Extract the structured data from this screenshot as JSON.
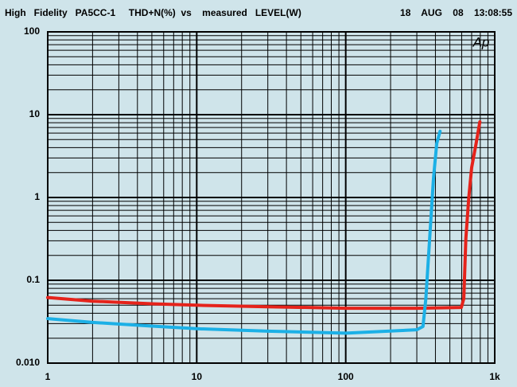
{
  "chart_data": {
    "type": "line",
    "title": "High   Fidelity   PA5CC-1     THD+N(%)  vs    measured   LEVEL(W)",
    "timestamp": "18    AUG    08    13:08:55",
    "logo": "Ap",
    "xlog": true,
    "ylog": true,
    "grid": true,
    "minor_grid": true,
    "xlim": [
      1,
      1000
    ],
    "ylim": [
      0.01,
      100
    ],
    "xticks": [
      1,
      10,
      100,
      {
        "value": 1000,
        "label": "1k"
      }
    ],
    "yticks": [
      {
        "value": 0.01,
        "label": "0.010"
      },
      0.1,
      1,
      10,
      100
    ],
    "series": [
      {
        "color": "#e5231b",
        "x": [
          1,
          2,
          5,
          10,
          30,
          100,
          300,
          597,
          620,
          640,
          670,
          700,
          750,
          795
        ],
        "values": [
          0.062,
          0.056,
          0.052,
          0.05,
          0.048,
          0.046,
          0.046,
          0.047,
          0.06,
          0.32,
          1.0,
          2.3,
          4.5,
          8.2
        ]
      },
      {
        "color": "#1cb0e6",
        "x": [
          1,
          2,
          5,
          10,
          30,
          100,
          300,
          330,
          345,
          366,
          388,
          408,
          430
        ],
        "values": [
          0.0345,
          0.031,
          0.028,
          0.026,
          0.0243,
          0.023,
          0.0253,
          0.0277,
          0.06,
          0.32,
          1.7,
          4.5,
          6.3
        ]
      }
    ]
  }
}
